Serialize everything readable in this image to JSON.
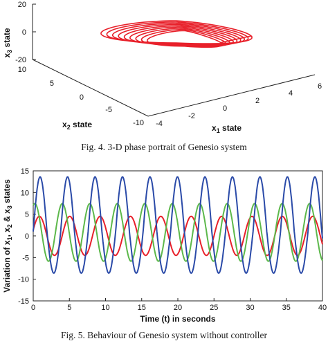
{
  "chart_data": [
    {
      "type": "line",
      "projection": "3d",
      "caption": "Fig. 4. 3-D phase portrait of Genesio system",
      "xlabel": "x",
      "xlabel_sub": "1",
      "xlabel_suffix": " state",
      "ylabel": "x",
      "ylabel_sub": "2",
      "ylabel_suffix": " state",
      "zlabel": "x",
      "zlabel_sub": "3",
      "zlabel_suffix": " state",
      "x_ticks": [
        "-4",
        "-2",
        "0",
        "2",
        "4",
        "6"
      ],
      "y_ticks": [
        "-10",
        "-5",
        "0",
        "5",
        "10"
      ],
      "z_ticks": [
        "-20",
        "0",
        "20"
      ],
      "xlim": [
        -4,
        6
      ],
      "ylim": [
        -10,
        10
      ],
      "zlim": [
        -20,
        20
      ],
      "series": [
        {
          "color": "#e8202a",
          "line": "red trajectory: chaotic attractor (double-scroll loops)"
        }
      ]
    },
    {
      "type": "line",
      "caption": "Fig. 5. Behaviour of Genesio system without controller",
      "xlabel": "Time (t) in seconds",
      "ylabel_prefix": "Variation of x",
      "ylabel_sub1": "1",
      "ylabel_mid1": ", x",
      "ylabel_sub2": "2",
      "ylabel_mid2": " & x",
      "ylabel_sub3": "3",
      "ylabel_suffix": " states",
      "xlim": [
        0,
        40
      ],
      "ylim": [
        -15,
        15
      ],
      "x_ticks": [
        "0",
        "5",
        "10",
        "15",
        "20",
        "25",
        "30",
        "35",
        "40"
      ],
      "y_ticks": [
        "-15",
        "-10",
        "-5",
        "0",
        "5",
        "10",
        "15"
      ],
      "grid": false,
      "series": [
        {
          "color": "#e8202a",
          "amplitude": 4.5,
          "period": 4.2,
          "phase": 0.3
        },
        {
          "color": "#5cb84a",
          "amplitude": 7,
          "period": 3.8,
          "phase": 1.2
        },
        {
          "color": "#2a4aa8",
          "amplitude": 12,
          "period": 3.8,
          "phase": 0.0
        }
      ]
    }
  ]
}
